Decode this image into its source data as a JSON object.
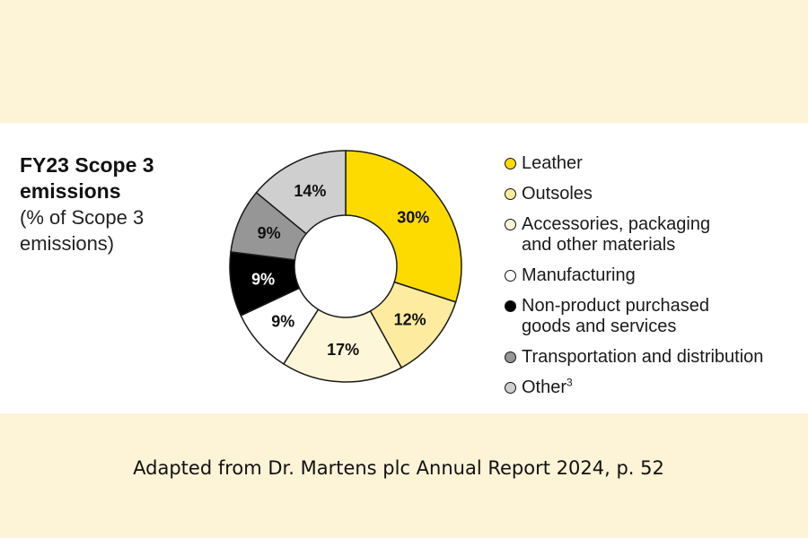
{
  "chart_data": {
    "type": "pie",
    "style": "donut",
    "title": "FY23 Scope 3 emissions",
    "subtitle": "(% of Scope 3 emissions)",
    "categories": [
      "Leather",
      "Outsoles",
      "Accessories, packaging and other materials",
      "Manufacturing",
      "Non-product purchased goods and services",
      "Transportation and distribution",
      "Other"
    ],
    "values": [
      30,
      12,
      17,
      9,
      9,
      9,
      14
    ],
    "labels": [
      "30%",
      "12%",
      "17%",
      "9%",
      "9%",
      "9%",
      "14%"
    ],
    "colors": [
      "#fedb00",
      "#fdeca0",
      "#fdf6d8",
      "#ffffff",
      "#000000",
      "#969696",
      "#cfcfcf"
    ],
    "label_colors": [
      "#111111",
      "#111111",
      "#111111",
      "#111111",
      "#ffffff",
      "#111111",
      "#111111"
    ],
    "legend_position": "right",
    "legend": [
      {
        "label": "Leather",
        "line2": "",
        "footnote": ""
      },
      {
        "label": "Outsoles",
        "line2": "",
        "footnote": ""
      },
      {
        "label": "Accessories, packaging",
        "line2": "and other materials",
        "footnote": ""
      },
      {
        "label": "Manufacturing",
        "line2": "",
        "footnote": ""
      },
      {
        "label": "Non-product purchased",
        "line2": "goods and services",
        "footnote": ""
      },
      {
        "label": "Transportation and distribution",
        "line2": "",
        "footnote": ""
      },
      {
        "label": "Other",
        "line2": "",
        "footnote": "3"
      }
    ]
  },
  "header": {
    "title_line1": "FY23 Scope 3",
    "title_line2": "emissions",
    "subtitle_line1": "(% of Scope 3",
    "subtitle_line2": "emissions)"
  },
  "caption": "Adapted from Dr. Martens plc Annual Report 2024, p. 52"
}
